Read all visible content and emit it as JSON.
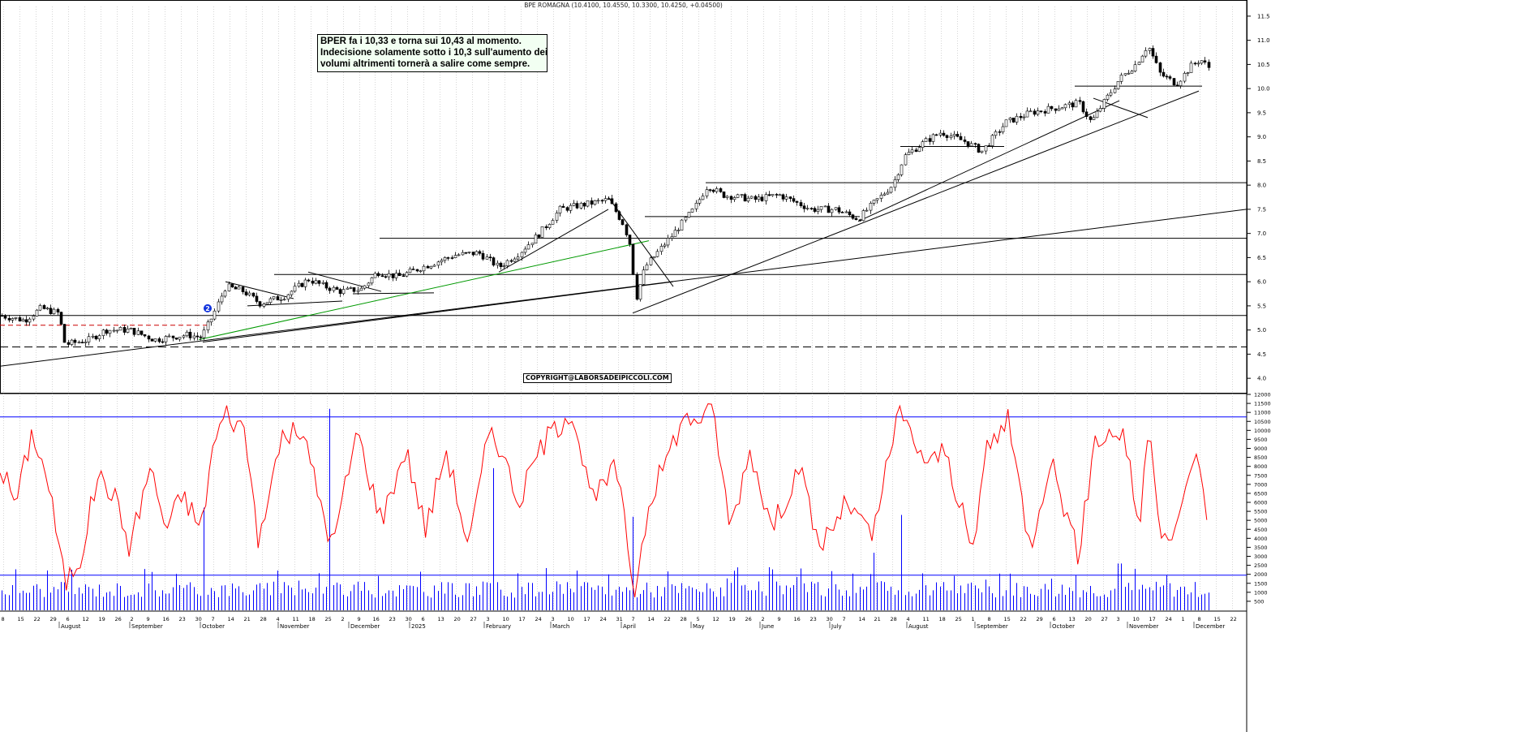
{
  "header": {
    "title": "BPE ROMAGNA (10.4100, 10.4550, 10.3300, 10.4250, +0.04500)"
  },
  "annotation": {
    "lines": [
      "BPER fa i 10,33 e torna sui 10,43 al momento.",
      "Indecisione solamente sotto i 10,3 sull'aumento dei",
      "volumi altrimenti tornerà a salire come sempre."
    ]
  },
  "copyright": "COPYRIGHT@LABORSADEIPICCOLI.COM",
  "marker_label": "2",
  "colors": {
    "candle": "#000000",
    "trend_green": "#009900",
    "oscillator": "#ff0000",
    "volume": "#0000ff",
    "support_dashed": "#000000",
    "resistance_dashed": "#cc0000"
  },
  "chart_data": [
    {
      "type": "candlestick",
      "title": "BPE ROMAGNA (10.4100, 10.4550, 10.3300, 10.4250, +0.04500)",
      "ylim": [
        3.7,
        11.7
      ],
      "y_ticks": [
        "4.0",
        "4.5",
        "5.0",
        "5.5",
        "6.0",
        "6.5",
        "7.0",
        "7.5",
        "8.0",
        "8.5",
        "9.0",
        "9.5",
        "10.0",
        "10.5",
        "11.0",
        "11.5"
      ],
      "grid": "vertical-dotted",
      "path_keypoints": [
        [
          0,
          5.3
        ],
        [
          30,
          5.2
        ],
        [
          50,
          5.45
        ],
        [
          72,
          5.35
        ],
        [
          80,
          4.7
        ],
        [
          110,
          4.8
        ],
        [
          130,
          5.0
        ],
        [
          160,
          5.0
        ],
        [
          190,
          4.8
        ],
        [
          230,
          4.9
        ],
        [
          248,
          4.85
        ],
        [
          262,
          5.3
        ],
        [
          278,
          5.9
        ],
        [
          300,
          5.8
        ],
        [
          320,
          5.55
        ],
        [
          350,
          5.7
        ],
        [
          380,
          6.05
        ],
        [
          400,
          5.9
        ],
        [
          420,
          5.8
        ],
        [
          445,
          5.85
        ],
        [
          465,
          6.2
        ],
        [
          490,
          6.1
        ],
        [
          520,
          6.3
        ],
        [
          560,
          6.55
        ],
        [
          590,
          6.6
        ],
        [
          615,
          6.3
        ],
        [
          640,
          6.6
        ],
        [
          665,
          7.0
        ],
        [
          690,
          7.5
        ],
        [
          720,
          7.6
        ],
        [
          750,
          7.7
        ],
        [
          768,
          7.2
        ],
        [
          778,
          6.7
        ],
        [
          783,
          5.6
        ],
        [
          795,
          6.3
        ],
        [
          810,
          6.6
        ],
        [
          830,
          7.0
        ],
        [
          855,
          7.5
        ],
        [
          872,
          8.0
        ],
        [
          890,
          7.8
        ],
        [
          930,
          7.7
        ],
        [
          960,
          7.8
        ],
        [
          1000,
          7.5
        ],
        [
          1030,
          7.5
        ],
        [
          1058,
          7.3
        ],
        [
          1075,
          7.6
        ],
        [
          1100,
          8.0
        ],
        [
          1115,
          8.6
        ],
        [
          1140,
          8.9
        ],
        [
          1160,
          9.1
        ],
        [
          1190,
          8.9
        ],
        [
          1210,
          8.7
        ],
        [
          1240,
          9.3
        ],
        [
          1270,
          9.5
        ],
        [
          1300,
          9.6
        ],
        [
          1330,
          9.7
        ],
        [
          1345,
          9.3
        ],
        [
          1360,
          9.7
        ],
        [
          1380,
          10.2
        ],
        [
          1400,
          10.5
        ],
        [
          1415,
          10.9
        ],
        [
          1430,
          10.3
        ],
        [
          1450,
          10.1
        ],
        [
          1470,
          10.5
        ],
        [
          1480,
          10.6
        ],
        [
          1492,
          10.4
        ]
      ],
      "horizontal_levels": [
        4.65,
        5.3,
        6.15,
        6.9,
        7.35,
        8.05,
        8.8,
        10.05
      ],
      "dashed_support": 4.65,
      "dashed_resistance": 5.1,
      "month_labels": [
        "August",
        "September",
        "October",
        "November",
        "December",
        "2025",
        "February",
        "March",
        "April",
        "May",
        "June",
        "July",
        "August",
        "September",
        "October",
        "November",
        "December"
      ],
      "day_labels": [
        "8",
        "15",
        "22",
        "29",
        "6",
        "12",
        "19",
        "26",
        "2",
        "9",
        "16",
        "23",
        "30",
        "7",
        "14",
        "21",
        "28",
        "4",
        "11",
        "18",
        "25",
        "2",
        "9",
        "16",
        "23",
        "30",
        "6",
        "13",
        "20",
        "27",
        "3",
        "10",
        "17",
        "24",
        "3",
        "10",
        "17",
        "24",
        "31",
        "7",
        "14",
        "22",
        "28",
        "5",
        "12",
        "19",
        "26",
        "2",
        "9",
        "16",
        "23",
        "30",
        "7",
        "14",
        "21",
        "28",
        "4",
        "11",
        "18",
        "25",
        "1",
        "8",
        "15",
        "22",
        "29",
        "6",
        "13",
        "20",
        "27",
        "3",
        "10",
        "17",
        "24",
        "1",
        "8",
        "15",
        "22"
      ]
    },
    {
      "type": "line+bar",
      "ylim": [
        0,
        12000
      ],
      "y_ticks": [
        "500",
        "1000",
        "1500",
        "2000",
        "2500",
        "3000",
        "3500",
        "4000",
        "4500",
        "5000",
        "5500",
        "6000",
        "6500",
        "7000",
        "7500",
        "8000",
        "8500",
        "9000",
        "9500",
        "10000",
        "10500",
        "11000",
        "11500",
        "12000"
      ],
      "reference_levels": [
        10750,
        1950
      ],
      "series": [
        {
          "type": "line",
          "color": "#ff0000"
        },
        {
          "type": "bar",
          "color": "#0000ff"
        }
      ]
    }
  ]
}
